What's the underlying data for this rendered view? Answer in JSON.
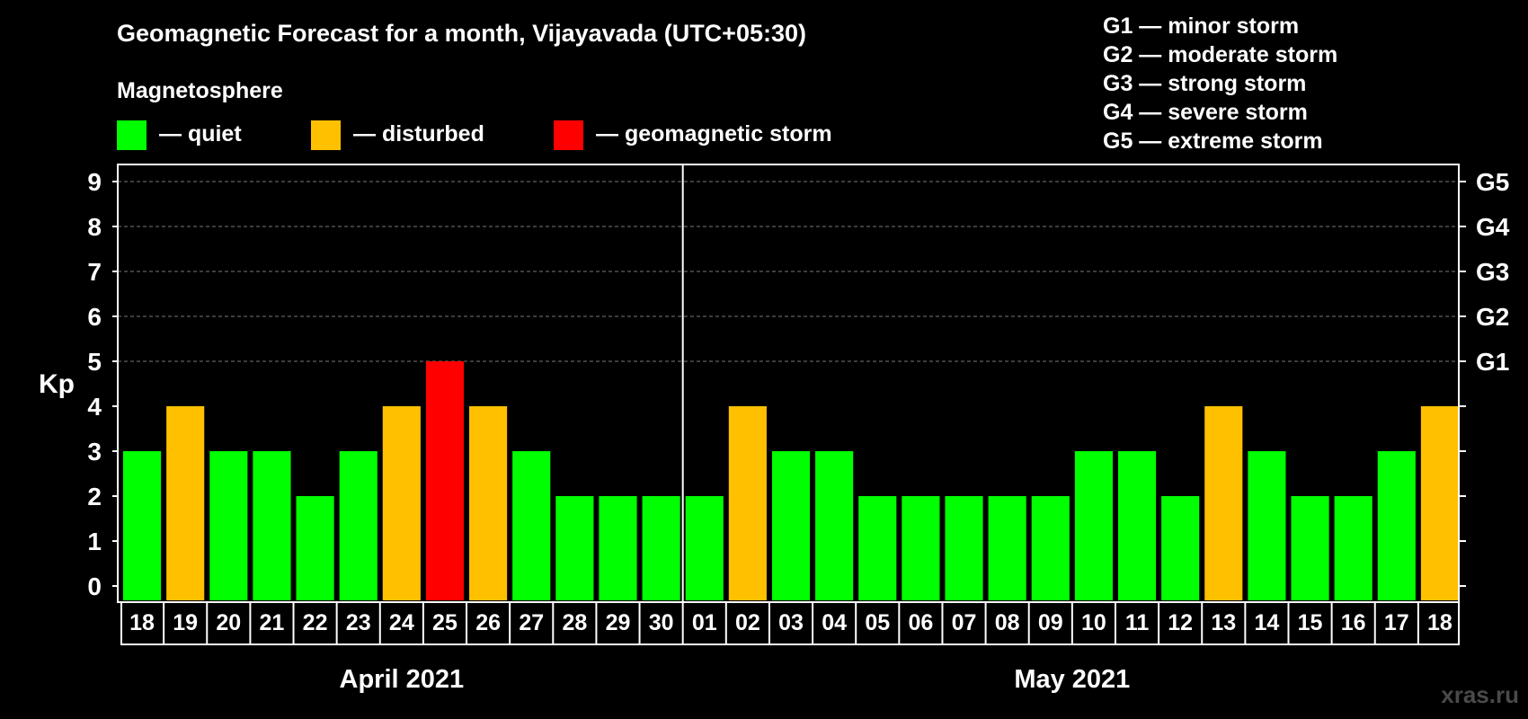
{
  "chart_data": {
    "type": "bar",
    "title": "Geomagnetic Forecast for a month, Vijayavada (UTC+05:30)",
    "legend_title": "Magnetosphere",
    "legend": [
      {
        "label": "— quiet",
        "color": "#00ff00"
      },
      {
        "label": "— disturbed",
        "color": "#ffc000"
      },
      {
        "label": "— geomagnetic storm",
        "color": "#ff0000"
      }
    ],
    "storm_scale": [
      "G1 — minor storm",
      "G2 — moderate storm",
      "G3 — strong storm",
      "G4 — severe storm",
      "G5 — extreme storm"
    ],
    "ylabel": "Kp",
    "ylim": [
      0,
      9
    ],
    "y_ticks": [
      0,
      1,
      2,
      3,
      4,
      5,
      6,
      7,
      8,
      9
    ],
    "right_axis_labels": [
      {
        "kp": 5,
        "label": "G1"
      },
      {
        "kp": 6,
        "label": "G2"
      },
      {
        "kp": 7,
        "label": "G3"
      },
      {
        "kp": 8,
        "label": "G4"
      },
      {
        "kp": 9,
        "label": "G5"
      }
    ],
    "categories": [
      "18",
      "19",
      "20",
      "21",
      "22",
      "23",
      "24",
      "25",
      "26",
      "27",
      "28",
      "29",
      "30",
      "01",
      "02",
      "03",
      "04",
      "05",
      "06",
      "07",
      "08",
      "09",
      "10",
      "11",
      "12",
      "13",
      "14",
      "15",
      "16",
      "17",
      "18"
    ],
    "values": [
      3,
      4,
      3,
      3,
      2,
      3,
      4,
      5,
      4,
      3,
      2,
      2,
      2,
      2,
      4,
      3,
      3,
      2,
      2,
      2,
      2,
      2,
      3,
      3,
      2,
      4,
      3,
      2,
      2,
      3,
      4
    ],
    "colors": {
      "quiet": "#00ff00",
      "disturbed": "#ffc000",
      "storm": "#ff0000"
    },
    "months": [
      {
        "label": "April 2021",
        "start_index": 0,
        "count": 13
      },
      {
        "label": "May 2021",
        "start_index": 13,
        "count": 18
      }
    ],
    "grid": true
  },
  "watermark": "xras.ru"
}
